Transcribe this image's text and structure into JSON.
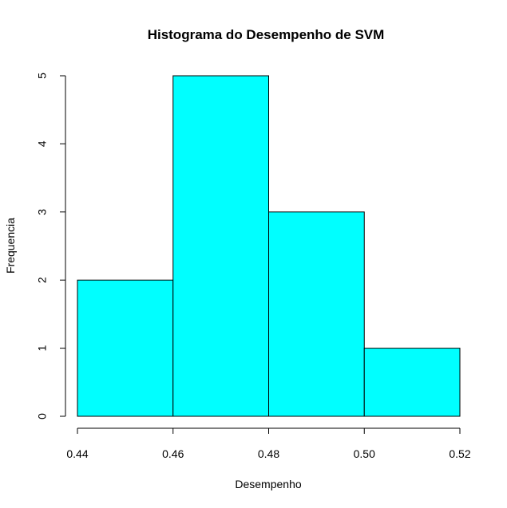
{
  "chart_data": {
    "type": "bar",
    "title": "Histograma do Desempenho de SVM",
    "xlabel": "Desempenho",
    "ylabel": "Frequencia",
    "bins": [
      {
        "start": 0.44,
        "end": 0.46,
        "count": 2
      },
      {
        "start": 0.46,
        "end": 0.48,
        "count": 5
      },
      {
        "start": 0.48,
        "end": 0.5,
        "count": 3
      },
      {
        "start": 0.5,
        "end": 0.52,
        "count": 1
      }
    ],
    "x_ticks": [
      "0.44",
      "0.46",
      "0.48",
      "0.50",
      "0.52"
    ],
    "y_ticks": [
      "0",
      "1",
      "2",
      "3",
      "4",
      "5"
    ],
    "xlim": [
      0.44,
      0.52
    ],
    "ylim": [
      0,
      5
    ],
    "bar_color": "#00FFFF",
    "bar_edge_color": "#000000",
    "grid": false
  }
}
